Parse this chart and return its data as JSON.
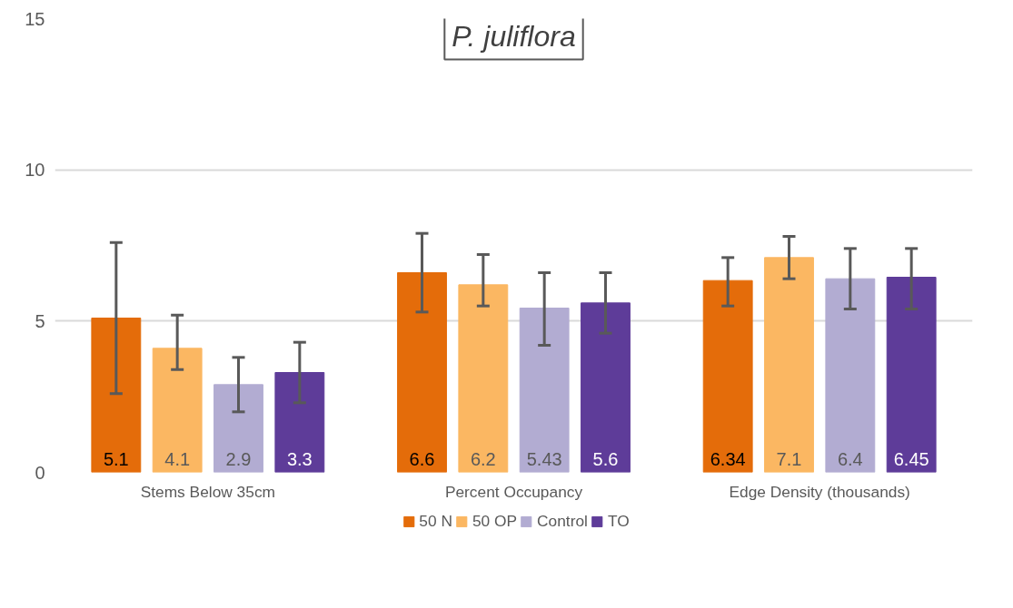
{
  "chart_data": {
    "type": "bar",
    "title": "P. juliflora",
    "categories": [
      "Stems Below 35cm",
      "Percent Occupancy",
      "Edge Density (thousands)"
    ],
    "series": [
      {
        "name": "50 N",
        "color": "#e46c0a",
        "values": [
          5.1,
          6.6,
          6.34
        ],
        "errors": [
          [
            2.6,
            7.6
          ],
          [
            5.3,
            7.9
          ],
          [
            5.5,
            7.1
          ]
        ]
      },
      {
        "name": "50 OP",
        "color": "#fbb762",
        "values": [
          4.1,
          6.2,
          7.1
        ],
        "errors": [
          [
            3.4,
            5.2
          ],
          [
            5.5,
            7.2
          ],
          [
            6.4,
            7.8
          ]
        ]
      },
      {
        "name": "Control",
        "color": "#b2acd2",
        "values": [
          2.9,
          5.43,
          6.4
        ],
        "errors": [
          [
            2.0,
            3.8
          ],
          [
            4.2,
            6.6
          ],
          [
            5.4,
            7.4
          ]
        ]
      },
      {
        "name": "TO",
        "color": "#5e3c99",
        "values": [
          3.3,
          5.6,
          6.45
        ],
        "errors": [
          [
            2.3,
            4.3
          ],
          [
            4.6,
            6.6
          ],
          [
            5.4,
            7.4
          ]
        ]
      }
    ],
    "ylim": [
      0,
      15
    ],
    "yticks": [
      0,
      5,
      10,
      15
    ],
    "grid": "y",
    "legend": "bottom",
    "data_labels": true
  }
}
